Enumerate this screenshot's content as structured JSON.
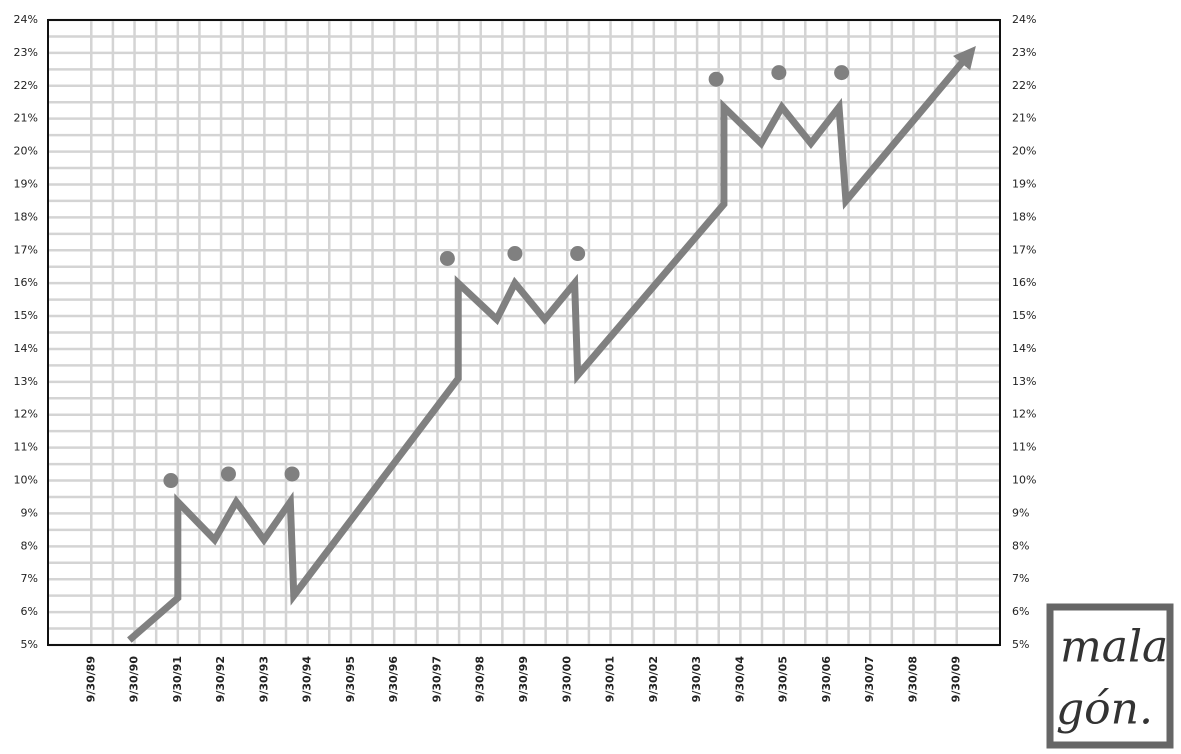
{
  "chart_data": {
    "type": "line",
    "xlim": [
      1988,
      2010
    ],
    "xticks": [
      {
        "value": 1989,
        "label": "9/30/89"
      },
      {
        "value": 1990,
        "label": "9/30/90"
      },
      {
        "value": 1991,
        "label": "9/30/91"
      },
      {
        "value": 1992,
        "label": "9/30/92"
      },
      {
        "value": 1993,
        "label": "9/30/93"
      },
      {
        "value": 1994,
        "label": "9/30/94"
      },
      {
        "value": 1995,
        "label": "9/30/95"
      },
      {
        "value": 1996,
        "label": "9/30/96"
      },
      {
        "value": 1997,
        "label": "9/30/97"
      },
      {
        "value": 1998,
        "label": "9/30/98"
      },
      {
        "value": 1999,
        "label": "9/30/99"
      },
      {
        "value": 2000,
        "label": "9/30/00"
      },
      {
        "value": 2001,
        "label": "9/30/01"
      },
      {
        "value": 2002,
        "label": "9/30/02"
      },
      {
        "value": 2003,
        "label": "9/30/03"
      },
      {
        "value": 2004,
        "label": "9/30/04"
      },
      {
        "value": 2005,
        "label": "9/30/05"
      },
      {
        "value": 2006,
        "label": "9/30/06"
      },
      {
        "value": 2007,
        "label": "9/30/07"
      },
      {
        "value": 2008,
        "label": "9/30/08"
      },
      {
        "value": 2009,
        "label": "9/30/09"
      }
    ],
    "ylim": [
      5,
      24
    ],
    "yticks": [
      {
        "value": 5,
        "label": "5%"
      },
      {
        "value": 6,
        "label": "6%"
      },
      {
        "value": 7,
        "label": "7%"
      },
      {
        "value": 8,
        "label": "8%"
      },
      {
        "value": 9,
        "label": "9%"
      },
      {
        "value": 10,
        "label": "10%"
      },
      {
        "value": 11,
        "label": "11%"
      },
      {
        "value": 12,
        "label": "12%"
      },
      {
        "value": 13,
        "label": "13%"
      },
      {
        "value": 14,
        "label": "14%"
      },
      {
        "value": 15,
        "label": "15%"
      },
      {
        "value": 16,
        "label": "16%"
      },
      {
        "value": 17,
        "label": "17%"
      },
      {
        "value": 18,
        "label": "18%"
      },
      {
        "value": 19,
        "label": "19%"
      },
      {
        "value": 20,
        "label": "20%"
      },
      {
        "value": 21,
        "label": "21%"
      },
      {
        "value": 22,
        "label": "22%"
      },
      {
        "value": 23,
        "label": "23%"
      },
      {
        "value": 24,
        "label": "24%"
      }
    ],
    "grid": true,
    "series": [
      {
        "color": "#808080",
        "x": [
          1989.88,
          1991.0,
          1991.0,
          1991.85,
          1992.35,
          1992.99,
          1993.6,
          1993.68,
          1997.48,
          1997.48,
          1998.37,
          1998.79,
          1999.48,
          2000.17,
          2000.24,
          2003.62,
          2003.62,
          2004.48,
          2004.96,
          2005.63,
          2006.28,
          2006.44,
          2009.31
        ],
        "values": [
          5.15,
          6.43,
          9.35,
          8.2,
          9.35,
          8.2,
          9.35,
          6.5,
          13.1,
          16.0,
          14.9,
          16.0,
          14.9,
          16.0,
          13.2,
          18.4,
          21.35,
          20.25,
          21.35,
          20.25,
          21.35,
          18.5,
          23.0
        ]
      },
      {
        "type": "scatter",
        "color": "#808080",
        "x": [
          1990.84,
          1992.17,
          1993.64,
          1997.23,
          1998.79,
          2000.24,
          2003.44,
          2004.89,
          2006.34
        ],
        "values": [
          10.0,
          10.2,
          10.2,
          16.75,
          16.9,
          16.9,
          22.2,
          22.4,
          22.4
        ]
      }
    ],
    "signature": [
      "mala",
      "gón."
    ]
  }
}
